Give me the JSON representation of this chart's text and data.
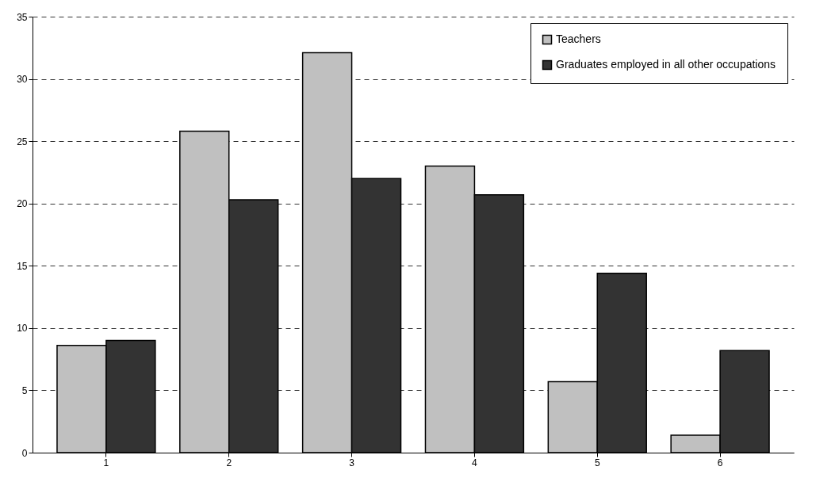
{
  "chart_data": {
    "type": "bar",
    "categories": [
      "1",
      "2",
      "3",
      "4",
      "5",
      "6"
    ],
    "series": [
      {
        "name": "Teachers",
        "color": "#c0c0c0",
        "values": [
          8.6,
          25.8,
          32.1,
          23.0,
          5.7,
          1.4
        ]
      },
      {
        "name": "Graduates employed in all other occupations",
        "color": "#333333",
        "values": [
          9.0,
          20.3,
          22.0,
          20.7,
          14.4,
          8.2
        ]
      }
    ],
    "ylim": [
      0,
      35
    ],
    "yticks": [
      0,
      5,
      10,
      15,
      20,
      25,
      30,
      35
    ],
    "grid": "y",
    "line_style": "dashed",
    "legend": "top right"
  }
}
